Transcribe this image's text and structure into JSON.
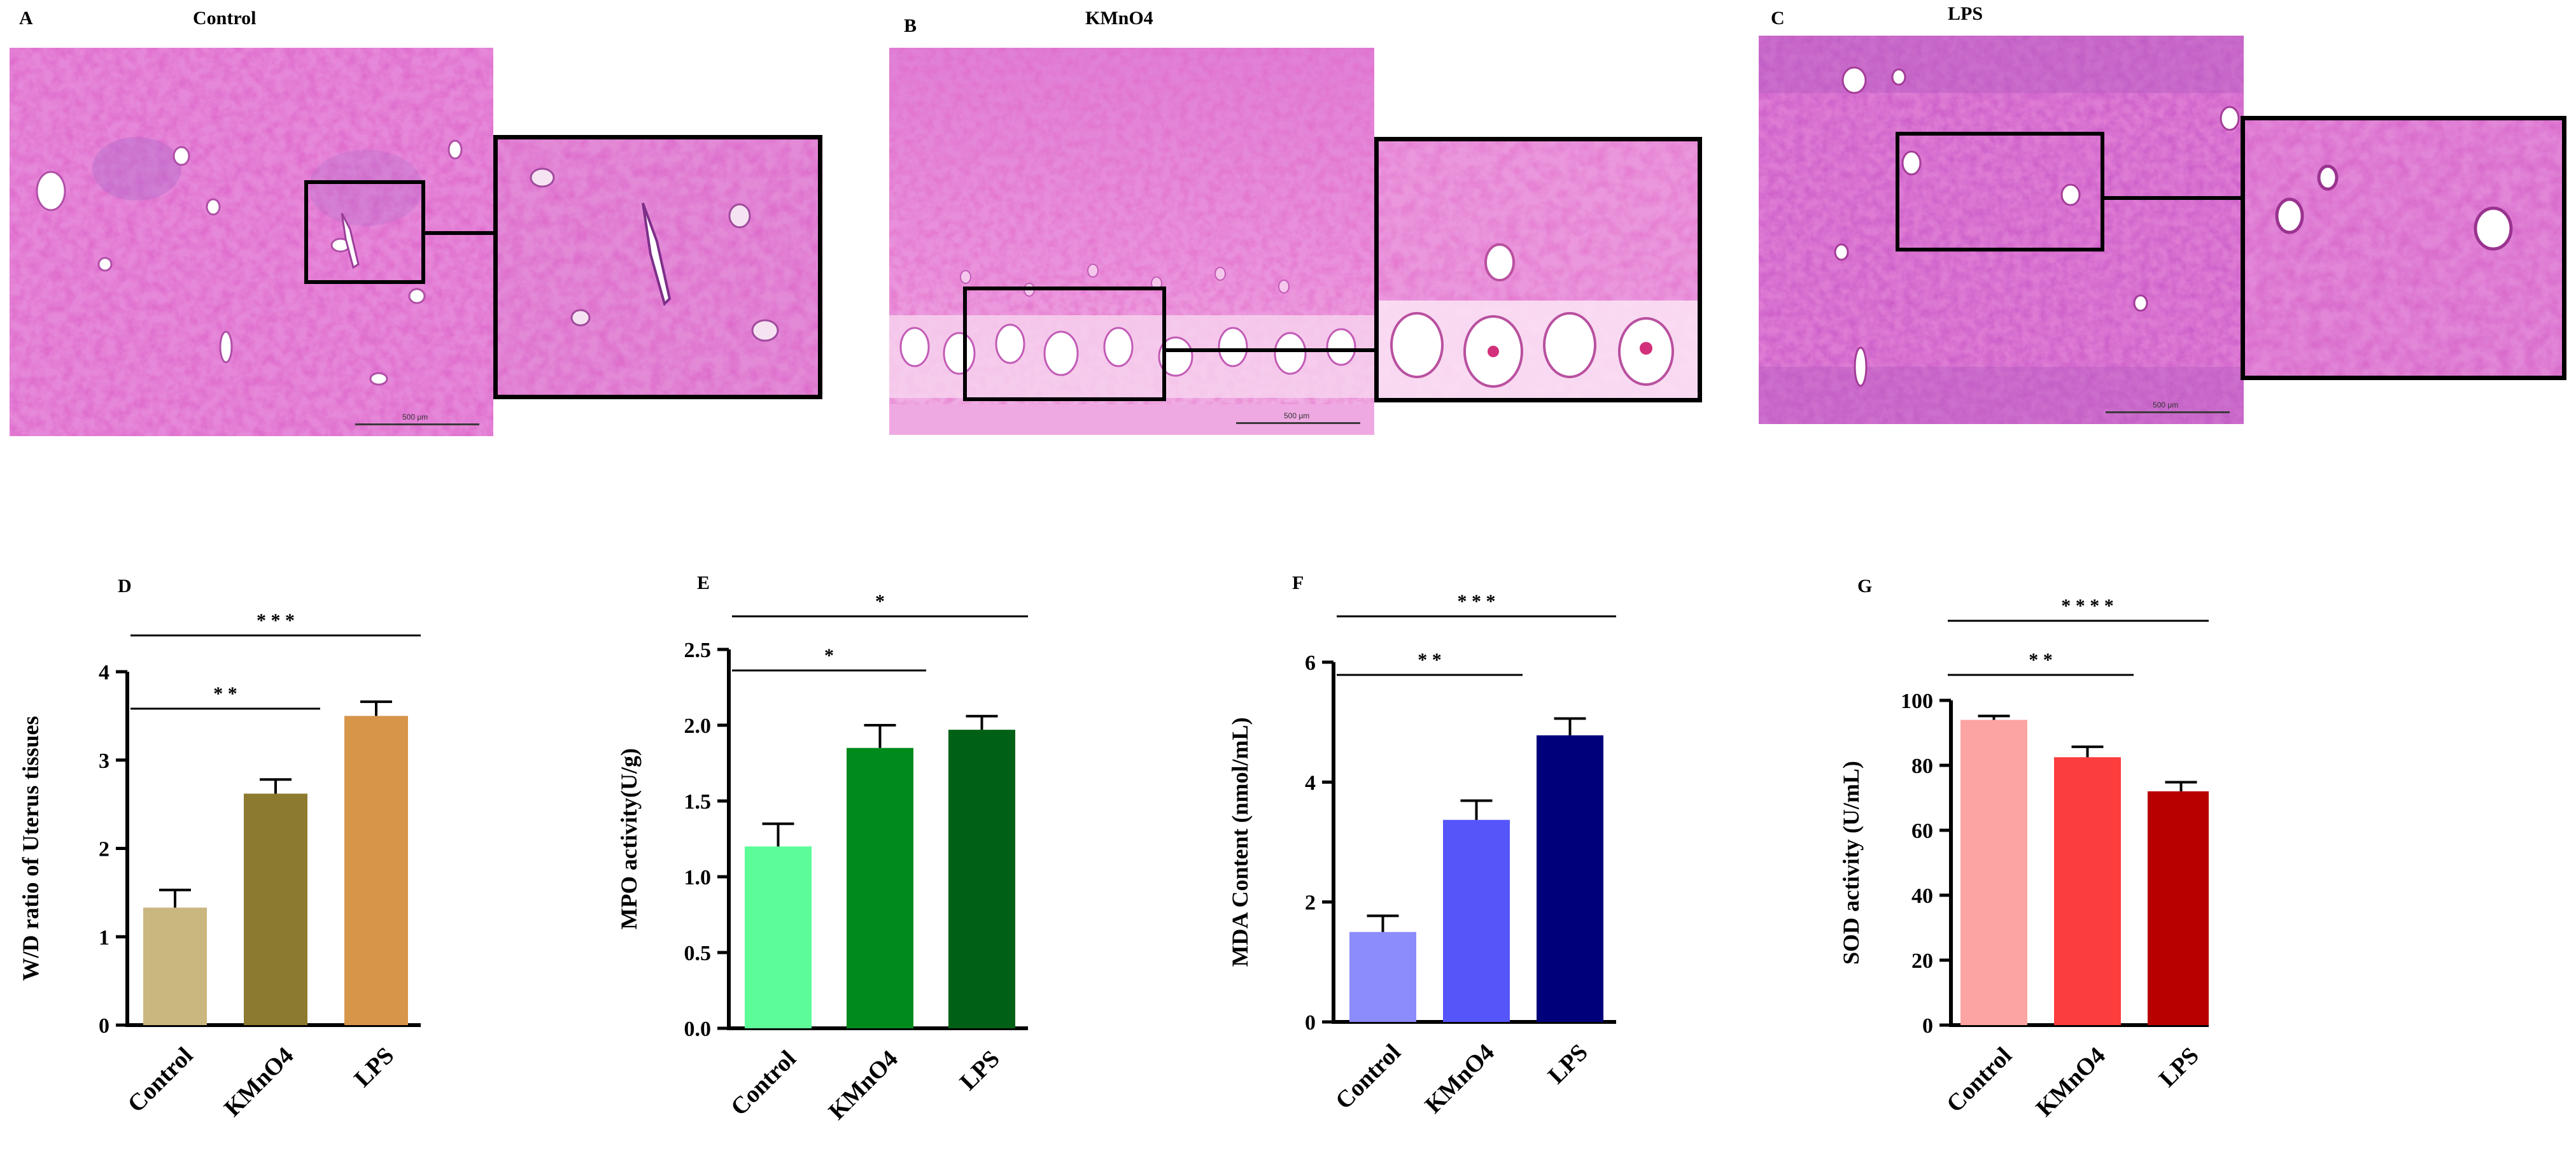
{
  "panels": {
    "A": {
      "letter": "A",
      "title": "Control",
      "scale": "500 μm"
    },
    "B": {
      "letter": "B",
      "title": "KMnO4",
      "scale": "500 μm"
    },
    "C": {
      "letter": "C",
      "title": "LPS",
      "scale": "500 μm"
    }
  },
  "chart_data": [
    {
      "panel": "D",
      "type": "bar",
      "categories": [
        "Control",
        "KMnO4",
        "LPS"
      ],
      "values": [
        1.33,
        2.62,
        3.5
      ],
      "errors": [
        0.2,
        0.16,
        0.16
      ],
      "colors": [
        "#c9b77f",
        "#8c7a2f",
        "#d7954a"
      ],
      "ylabel": "W/D ratio of Uterus tissues",
      "xlabel": "",
      "ylim": [
        0,
        4
      ],
      "yticks": [
        "0",
        "1",
        "2",
        "3",
        "4"
      ],
      "significance": [
        {
          "label": "* *",
          "from": 0,
          "to": 1
        },
        {
          "label": "* * *",
          "from": 0,
          "to": 2
        }
      ]
    },
    {
      "panel": "E",
      "type": "bar",
      "categories": [
        "Control",
        "KMnO4",
        "LPS"
      ],
      "values": [
        1.2,
        1.85,
        1.97
      ],
      "errors": [
        0.15,
        0.15,
        0.09
      ],
      "colors": [
        "#5cfc99",
        "#008a1c",
        "#006116"
      ],
      "ylabel": "MPO activity(U/g)",
      "xlabel": "",
      "ylim": [
        0,
        2.5
      ],
      "yticks": [
        "0.0",
        "0.5",
        "1.0",
        "1.5",
        "2.0",
        "2.5"
      ],
      "significance": [
        {
          "label": "*",
          "from": 0,
          "to": 1
        },
        {
          "label": "*",
          "from": 0,
          "to": 2
        }
      ]
    },
    {
      "panel": "F",
      "type": "bar",
      "categories": [
        "Control",
        "KMnO4",
        "LPS"
      ],
      "values": [
        1.5,
        3.37,
        4.78
      ],
      "errors": [
        0.27,
        0.32,
        0.28
      ],
      "colors": [
        "#8c8cfc",
        "#5555fa",
        "#00007a"
      ],
      "ylabel": "MDA Content (nmol/mL)",
      "xlabel": "",
      "ylim": [
        0,
        6
      ],
      "yticks": [
        "0",
        "2",
        "4",
        "6"
      ],
      "significance": [
        {
          "label": "* *",
          "from": 0,
          "to": 1
        },
        {
          "label": "* * *",
          "from": 0,
          "to": 2
        }
      ]
    },
    {
      "panel": "G",
      "type": "bar",
      "categories": [
        "Control",
        "KMnO4",
        "LPS"
      ],
      "values": [
        94,
        82.5,
        72
      ],
      "errors": [
        1.2,
        3.2,
        2.8
      ],
      "colors": [
        "#fca3a3",
        "#fc3d3d",
        "#b80000"
      ],
      "ylabel": "SOD activity (U/mL)",
      "xlabel": "",
      "ylim": [
        0,
        100
      ],
      "yticks": [
        "0",
        "20",
        "40",
        "60",
        "80",
        "100"
      ],
      "significance": [
        {
          "label": "* *",
          "from": 0,
          "to": 1
        },
        {
          "label": "* * * *",
          "from": 0,
          "to": 2
        }
      ]
    }
  ]
}
